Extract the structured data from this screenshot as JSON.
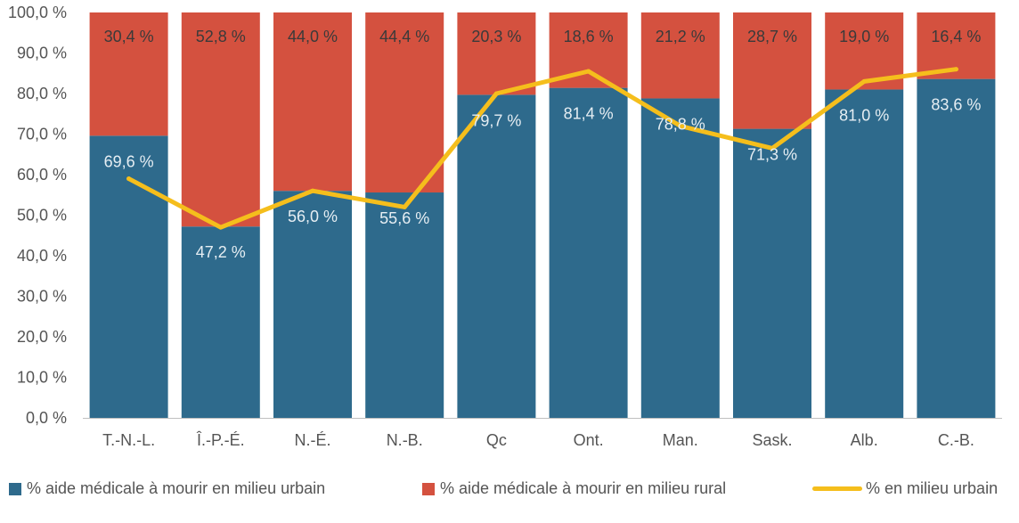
{
  "chart_data": {
    "type": "bar",
    "stacked": true,
    "title": "",
    "xlabel": "",
    "ylabel": "",
    "ylim": [
      0,
      100
    ],
    "ytick_step": 10,
    "ytick_labels": [
      "0,0 %",
      "10,0 %",
      "20,0 %",
      "30,0 %",
      "40,0 %",
      "50,0 %",
      "60,0 %",
      "70,0 %",
      "80,0 %",
      "90,0 %",
      "100,0 %"
    ],
    "categories": [
      "T.-N.-L.",
      "Î.-P.-É.",
      "N.-É.",
      "N.-B.",
      "Qc",
      "Ont.",
      "Man.",
      "Sask.",
      "Alb.",
      "C.-B."
    ],
    "series": [
      {
        "name": "% aide médicale à mourir en milieu urbain",
        "type": "bar",
        "color": "#2e6a8c",
        "values": [
          69.6,
          47.2,
          56.0,
          55.6,
          79.7,
          81.4,
          78.8,
          71.3,
          81.0,
          83.6
        ],
        "labels": [
          "69,6 %",
          "47,2 %",
          "56,0 %",
          "55,6 %",
          "79,7 %",
          "81,4 %",
          "78,8 %",
          "71,3 %",
          "81,0 %",
          "83,6 %"
        ]
      },
      {
        "name": "% aide médicale à mourir en milieu rural",
        "type": "bar",
        "color": "#d4513f",
        "values": [
          30.4,
          52.8,
          44.0,
          44.4,
          20.3,
          18.6,
          21.2,
          28.7,
          19.0,
          16.4
        ],
        "labels": [
          "30,4 %",
          "52,8 %",
          "44,0 %",
          "44,4 %",
          "20,3 %",
          "18,6 %",
          "21,2 %",
          "28,7 %",
          "19,0 %",
          "16,4 %"
        ]
      },
      {
        "name": "% en milieu urbain",
        "type": "line",
        "color": "#f5be1c",
        "values": [
          59,
          47,
          56,
          52,
          80,
          85.5,
          72,
          66.5,
          83,
          86
        ]
      }
    ],
    "grid": false,
    "legend_position": "bottom"
  }
}
